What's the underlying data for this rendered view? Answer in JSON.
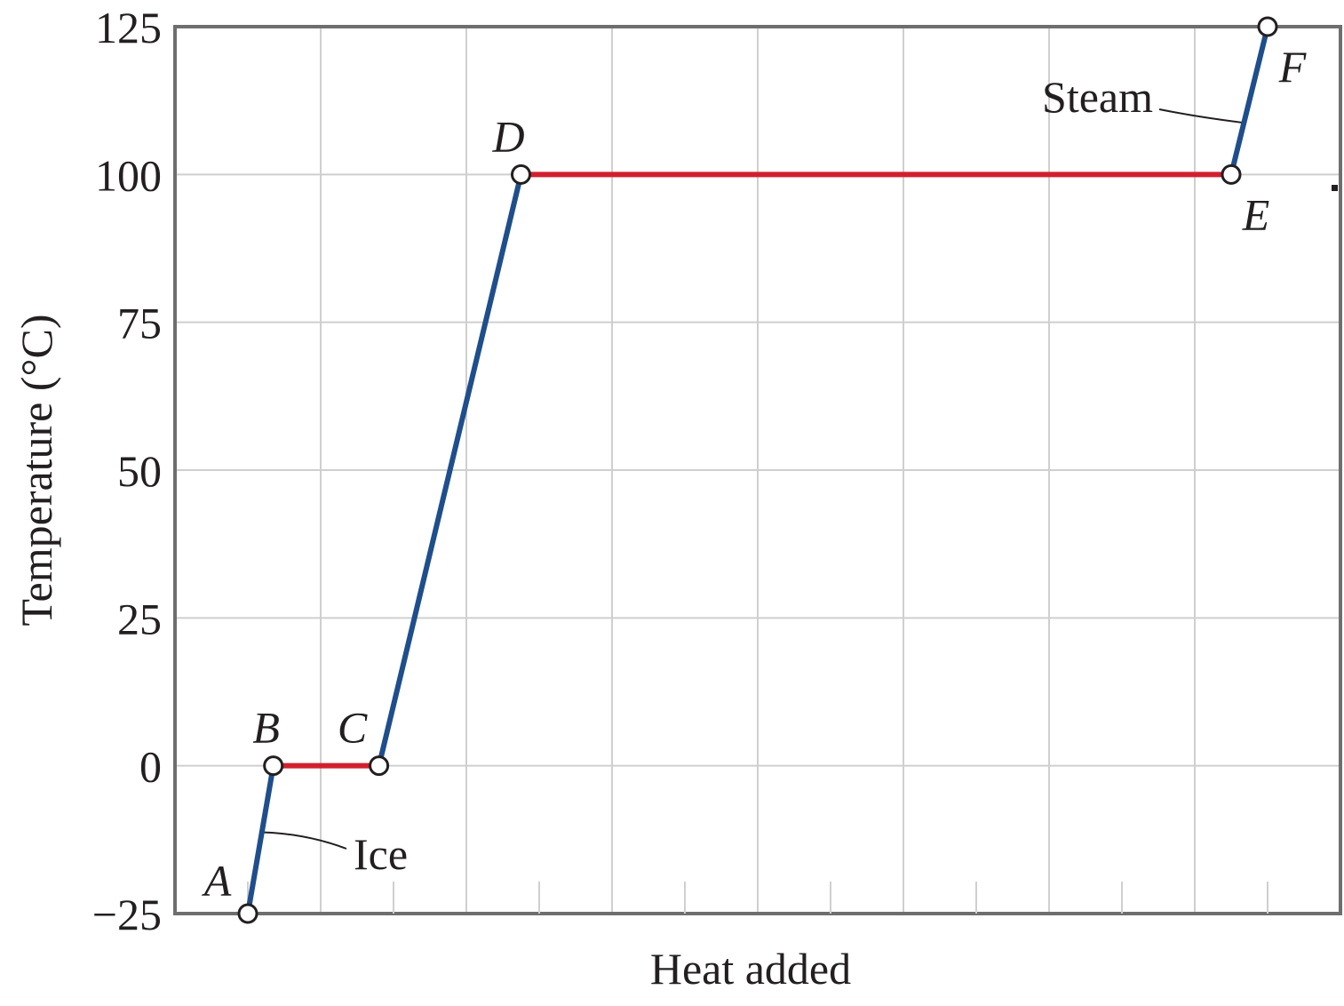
{
  "chart_data": {
    "type": "line",
    "title": "",
    "xlabel": "Heat added",
    "ylabel": "Temperature (°C)",
    "ylim": [
      -25,
      125
    ],
    "xlim": [
      0,
      16
    ],
    "x_tick_labels_shown": false,
    "y_ticks": [
      "−25",
      "0",
      "25",
      "50",
      "75",
      "100",
      "125"
    ],
    "y_tick_values": [
      -25,
      0,
      25,
      50,
      75,
      100,
      125
    ],
    "grid": true,
    "legend": "none",
    "colors": {
      "heating": "#1f4e8c",
      "phase_change": "#d0202e",
      "grid": "#cfcfcf",
      "frame": "#6e6e6e",
      "marker_fill": "#ffffff",
      "marker_stroke": "#231f20"
    },
    "points": [
      {
        "label": "A",
        "x": 1.0,
        "y": -25
      },
      {
        "label": "B",
        "x": 1.35,
        "y": 0
      },
      {
        "label": "C",
        "x": 2.8,
        "y": 0
      },
      {
        "label": "D",
        "x": 4.75,
        "y": 100
      },
      {
        "label": "E",
        "x": 14.5,
        "y": 100
      },
      {
        "label": "F",
        "x": 15.0,
        "y": 125
      }
    ],
    "segments": [
      {
        "from": "A",
        "to": "B",
        "kind": "heating"
      },
      {
        "from": "B",
        "to": "C",
        "kind": "phase_change"
      },
      {
        "from": "C",
        "to": "D",
        "kind": "heating"
      },
      {
        "from": "D",
        "to": "E",
        "kind": "phase_change"
      },
      {
        "from": "E",
        "to": "F",
        "kind": "heating"
      }
    ],
    "annotations": [
      {
        "text": "Ice",
        "segment": "A-B"
      },
      {
        "text": "Steam",
        "segment": "E-F"
      }
    ]
  }
}
